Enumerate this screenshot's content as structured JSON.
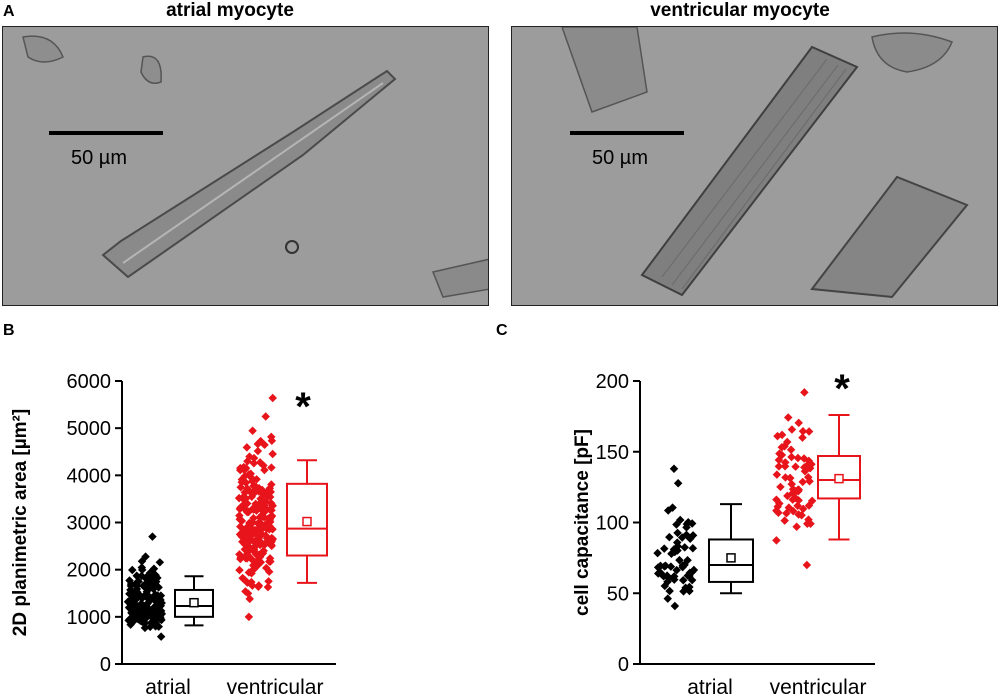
{
  "panels": {
    "a": {
      "letter": "A"
    },
    "b": {
      "letter": "B"
    },
    "c": {
      "letter": "C"
    }
  },
  "micrographs": [
    {
      "title": "atrial myocyte",
      "scale_label": "50 µm"
    },
    {
      "title": "ventricular myocyte",
      "scale_label": "50 µm"
    }
  ],
  "colors": {
    "atrial": "#000000",
    "ventricular": "#e8141b",
    "micrograph_bg": "#9c9c9c"
  },
  "chart_data": [
    {
      "type": "box",
      "panel": "B",
      "ylabel": "2D planimetric area [µm²]",
      "ylim": [
        0,
        6000
      ],
      "yticks": [
        0,
        1000,
        2000,
        3000,
        4000,
        5000,
        6000
      ],
      "categories": [
        "atrial",
        "ventricular"
      ],
      "significance": "*",
      "series": [
        {
          "category": "atrial",
          "color": "#000000",
          "box": {
            "whisker_low": 820,
            "q1": 1000,
            "median": 1230,
            "q3": 1570,
            "whisker_high": 1860,
            "mean": 1300
          },
          "points": {
            "min": 580,
            "max": 2700,
            "n": 170
          }
        },
        {
          "category": "ventricular",
          "color": "#e8141b",
          "box": {
            "whisker_low": 1720,
            "q1": 2300,
            "median": 2870,
            "q3": 3820,
            "whisker_high": 4320,
            "mean": 3020
          },
          "points": {
            "min": 1000,
            "max": 5640,
            "n": 230
          }
        }
      ]
    },
    {
      "type": "box",
      "panel": "C",
      "ylabel": "cell capacitance [pF]",
      "ylim": [
        0,
        200
      ],
      "yticks": [
        0,
        50,
        100,
        150,
        200
      ],
      "categories": [
        "atrial",
        "ventricular"
      ],
      "significance": "*",
      "series": [
        {
          "category": "atrial",
          "color": "#000000",
          "box": {
            "whisker_low": 50,
            "q1": 58,
            "median": 70,
            "q3": 88,
            "whisker_high": 113,
            "mean": 75
          },
          "points": {
            "min": 41,
            "max": 138,
            "n": 60
          }
        },
        {
          "category": "ventricular",
          "color": "#e8141b",
          "box": {
            "whisker_low": 88,
            "q1": 117,
            "median": 130,
            "q3": 147,
            "whisker_high": 176,
            "mean": 131
          },
          "points": {
            "min": 70,
            "max": 192,
            "n": 70
          }
        }
      ]
    }
  ]
}
